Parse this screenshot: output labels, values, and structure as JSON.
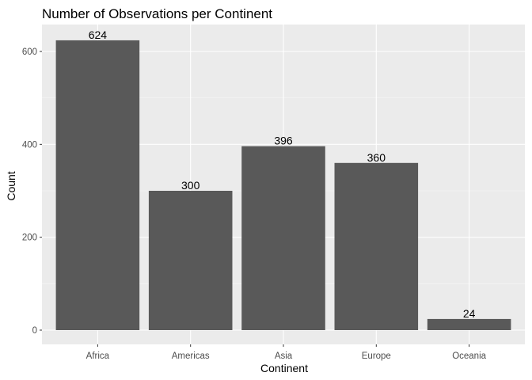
{
  "chart_data": {
    "type": "bar",
    "title": "Number of Observations per Continent",
    "xlabel": "Continent",
    "ylabel": "Count",
    "categories": [
      "Africa",
      "Americas",
      "Asia",
      "Europe",
      "Oceania"
    ],
    "values": [
      624,
      300,
      396,
      360,
      24
    ],
    "data_labels": [
      "624",
      "300",
      "396",
      "360",
      "24"
    ],
    "ylim": [
      0,
      655
    ],
    "y_ticks": [
      0,
      200,
      400,
      600
    ],
    "y_tick_labels": [
      "0",
      "200",
      "400",
      "600"
    ],
    "grid": true,
    "legend": "none",
    "colors": {
      "bar": "#595959",
      "panel_background": "#ebebeb",
      "grid_major": "#ffffff",
      "grid_minor": "#f5f5f5"
    }
  }
}
